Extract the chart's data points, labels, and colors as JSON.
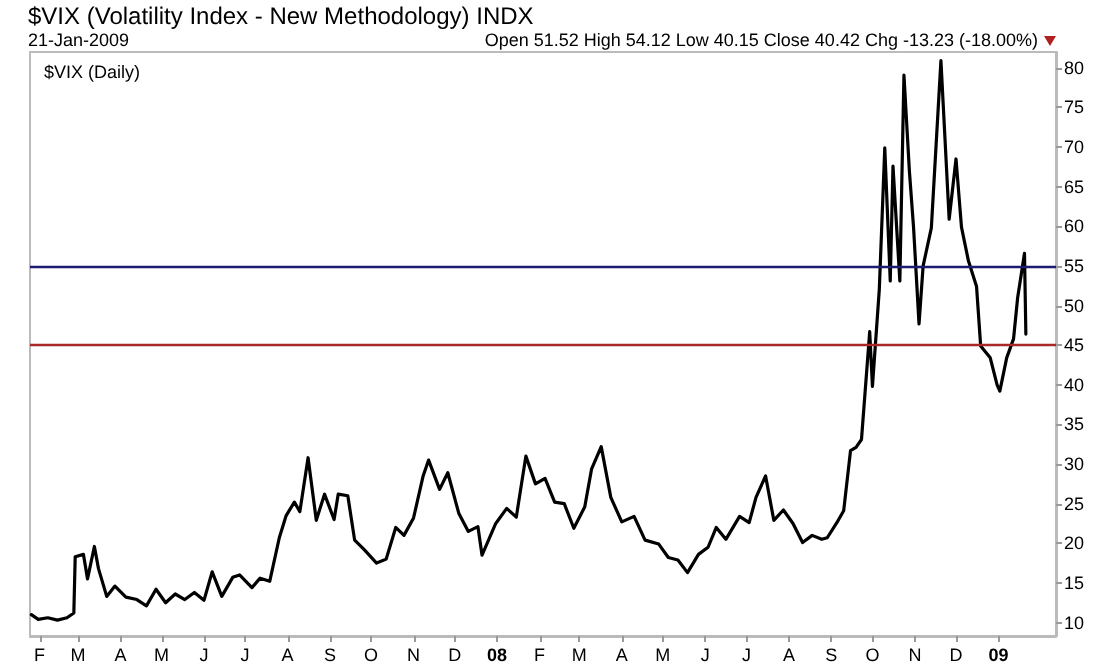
{
  "chart_data": {
    "type": "line",
    "title": "$VIX (Volatility Index - New Methodology) INDX",
    "subtitle": "21-Jan-2009",
    "annotations": [
      "Open 51.52 High 54.12 Low 40.15 Close 40.42 Chg -13.23 (-18.00%)"
    ],
    "legend": "top left",
    "grid": false,
    "marker": "none",
    "line_style": "solid",
    "xlim": [
      "2007-01-25",
      "2009-02-12"
    ],
    "xticks": [
      {
        "value": "2007-02-01",
        "label": "F"
      },
      {
        "value": "2007-03-01",
        "label": "M"
      },
      {
        "value": "2007-04-01",
        "label": "A"
      },
      {
        "value": "2007-05-01",
        "label": "M"
      },
      {
        "value": "2007-06-01",
        "label": "J"
      },
      {
        "value": "2007-07-01",
        "label": "J"
      },
      {
        "value": "2007-08-01",
        "label": "A"
      },
      {
        "value": "2007-09-01",
        "label": "S"
      },
      {
        "value": "2007-10-01",
        "label": "O"
      },
      {
        "value": "2007-11-01",
        "label": "N"
      },
      {
        "value": "2007-12-01",
        "label": "D"
      },
      {
        "value": "2008-01-01",
        "label": "08"
      },
      {
        "value": "2008-02-01",
        "label": "F"
      },
      {
        "value": "2008-03-01",
        "label": "M"
      },
      {
        "value": "2008-04-01",
        "label": "A"
      },
      {
        "value": "2008-05-01",
        "label": "M"
      },
      {
        "value": "2008-06-01",
        "label": "J"
      },
      {
        "value": "2008-07-01",
        "label": "J"
      },
      {
        "value": "2008-08-01",
        "label": "A"
      },
      {
        "value": "2008-09-01",
        "label": "S"
      },
      {
        "value": "2008-10-01",
        "label": "O"
      },
      {
        "value": "2008-11-01",
        "label": "N"
      },
      {
        "value": "2008-12-01",
        "label": "D"
      },
      {
        "value": "2009-01-01",
        "label": "09"
      }
    ],
    "ylim": [
      8.3,
      82
    ],
    "yticks": [
      10,
      15,
      20,
      25,
      30,
      35,
      40,
      45,
      50,
      55,
      60,
      65,
      70,
      75,
      80
    ],
    "ref_lines": [
      {
        "axis": "y",
        "value": 55,
        "color": "#1c1c6e",
        "line_style": "solid"
      },
      {
        "axis": "y",
        "value": 45,
        "color": "#a82828",
        "line_style": "solid"
      }
    ],
    "series": [
      {
        "name": "$VIX (Daily)",
        "color": "#000000",
        "x": [
          "2007-01-26",
          "2007-01-31",
          "2007-02-07",
          "2007-02-14",
          "2007-02-21",
          "2007-02-26",
          "2007-02-27",
          "2007-03-05",
          "2007-03-08",
          "2007-03-13",
          "2007-03-16",
          "2007-03-22",
          "2007-03-28",
          "2007-04-05",
          "2007-04-13",
          "2007-04-20",
          "2007-04-27",
          "2007-05-04",
          "2007-05-11",
          "2007-05-18",
          "2007-05-25",
          "2007-06-01",
          "2007-06-07",
          "2007-06-14",
          "2007-06-22",
          "2007-06-27",
          "2007-07-06",
          "2007-07-12",
          "2007-07-19",
          "2007-07-26",
          "2007-07-31",
          "2007-08-06",
          "2007-08-10",
          "2007-08-16",
          "2007-08-22",
          "2007-08-28",
          "2007-09-04",
          "2007-09-07",
          "2007-09-14",
          "2007-09-19",
          "2007-09-26",
          "2007-10-05",
          "2007-10-12",
          "2007-10-19",
          "2007-10-25",
          "2007-11-01",
          "2007-11-08",
          "2007-11-12",
          "2007-11-20",
          "2007-11-26",
          "2007-12-04",
          "2007-12-11",
          "2007-12-18",
          "2007-12-21",
          "2007-12-31",
          "2008-01-08",
          "2008-01-15",
          "2008-01-22",
          "2008-01-29",
          "2008-02-05",
          "2008-02-12",
          "2008-02-19",
          "2008-02-26",
          "2008-03-05",
          "2008-03-10",
          "2008-03-17",
          "2008-03-24",
          "2008-04-01",
          "2008-04-10",
          "2008-04-18",
          "2008-04-28",
          "2008-05-05",
          "2008-05-12",
          "2008-05-19",
          "2008-05-27",
          "2008-06-03",
          "2008-06-09",
          "2008-06-16",
          "2008-06-26",
          "2008-07-03",
          "2008-07-08",
          "2008-07-15",
          "2008-07-21",
          "2008-07-28",
          "2008-08-04",
          "2008-08-11",
          "2008-08-18",
          "2008-08-25",
          "2008-08-29",
          "2008-09-05",
          "2008-09-10",
          "2008-09-15",
          "2008-09-19",
          "2008-09-23",
          "2008-09-29",
          "2008-10-01",
          "2008-10-06",
          "2008-10-10",
          "2008-10-14",
          "2008-10-16",
          "2008-10-21",
          "2008-10-24",
          "2008-10-28",
          "2008-10-31",
          "2008-11-04",
          "2008-11-07",
          "2008-11-13",
          "2008-11-20",
          "2008-11-26",
          "2008-12-01",
          "2008-12-05",
          "2008-12-10",
          "2008-12-16",
          "2008-12-19",
          "2008-12-26",
          "2008-12-31",
          "2009-01-02",
          "2009-01-07",
          "2009-01-12",
          "2009-01-15",
          "2009-01-20",
          "2009-01-21"
        ],
        "values": [
          11.0,
          10.4,
          10.6,
          10.3,
          10.6,
          11.2,
          18.3,
          18.6,
          15.5,
          19.6,
          16.8,
          13.3,
          14.6,
          13.2,
          12.9,
          12.1,
          14.2,
          12.5,
          13.6,
          12.9,
          13.8,
          12.8,
          16.4,
          13.3,
          15.7,
          16.0,
          14.4,
          15.6,
          15.2,
          20.7,
          23.5,
          25.2,
          24.0,
          30.8,
          22.9,
          26.2,
          23.0,
          26.2,
          26.0,
          20.4,
          19.2,
          17.5,
          18.0,
          22.0,
          21.0,
          23.2,
          28.5,
          30.5,
          26.8,
          28.9,
          23.8,
          21.5,
          22.1,
          18.5,
          22.5,
          24.4,
          23.3,
          31.0,
          27.5,
          28.2,
          25.2,
          25.0,
          21.9,
          24.6,
          29.4,
          32.2,
          25.8,
          22.7,
          23.4,
          20.4,
          19.9,
          18.2,
          17.9,
          16.3,
          18.6,
          19.5,
          22.0,
          20.5,
          23.4,
          22.6,
          25.8,
          28.5,
          22.9,
          24.2,
          22.5,
          20.1,
          21.0,
          20.5,
          20.7,
          22.6,
          24.1,
          31.7,
          32.1,
          33.1,
          46.7,
          39.8,
          52.0,
          69.9,
          53.1,
          67.6,
          53.1,
          79.1,
          66.9,
          59.9,
          47.7,
          55.0,
          59.8,
          80.9,
          60.9,
          68.5,
          59.9,
          55.7,
          52.4,
          44.9,
          43.4,
          40.0,
          39.2,
          43.4,
          45.8,
          51.0,
          56.6,
          46.4
        ]
      }
    ]
  }
}
